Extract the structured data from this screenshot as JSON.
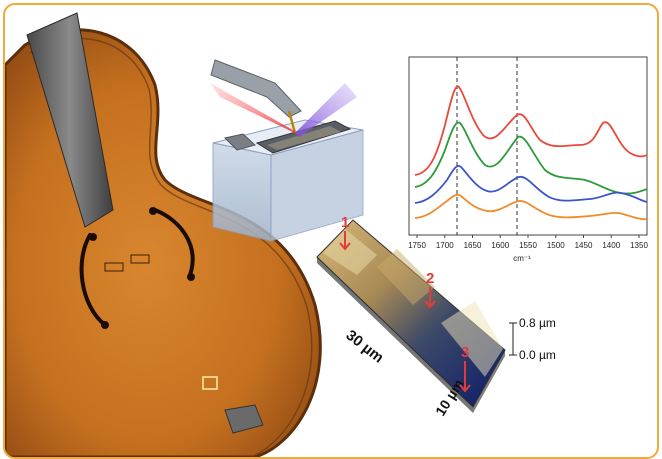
{
  "spectrum": {
    "x_unit": "cm⁻¹",
    "x_ticks": [
      "1750",
      "1700",
      "1650",
      "1600",
      "1550",
      "1500",
      "1450",
      "1400",
      "1350"
    ]
  },
  "topography": {
    "length_label": "30 µm",
    "width_label": "10 µm",
    "height_top": "0.8 µm",
    "height_bottom": "0.0 µm",
    "markers": [
      "1",
      "2",
      "3"
    ]
  },
  "colors": {
    "frame_border": "#f0a93a",
    "marker": "#e23b3b",
    "curve_red": "#e8493c",
    "curve_green": "#2e9a3a",
    "curve_blue": "#3a55c8",
    "curve_orange": "#f08b2a"
  },
  "icons": [
    "violin-illustration",
    "afm-ir-setup-illustration",
    "ir-spectrum-chart",
    "afm-topography-map"
  ]
}
